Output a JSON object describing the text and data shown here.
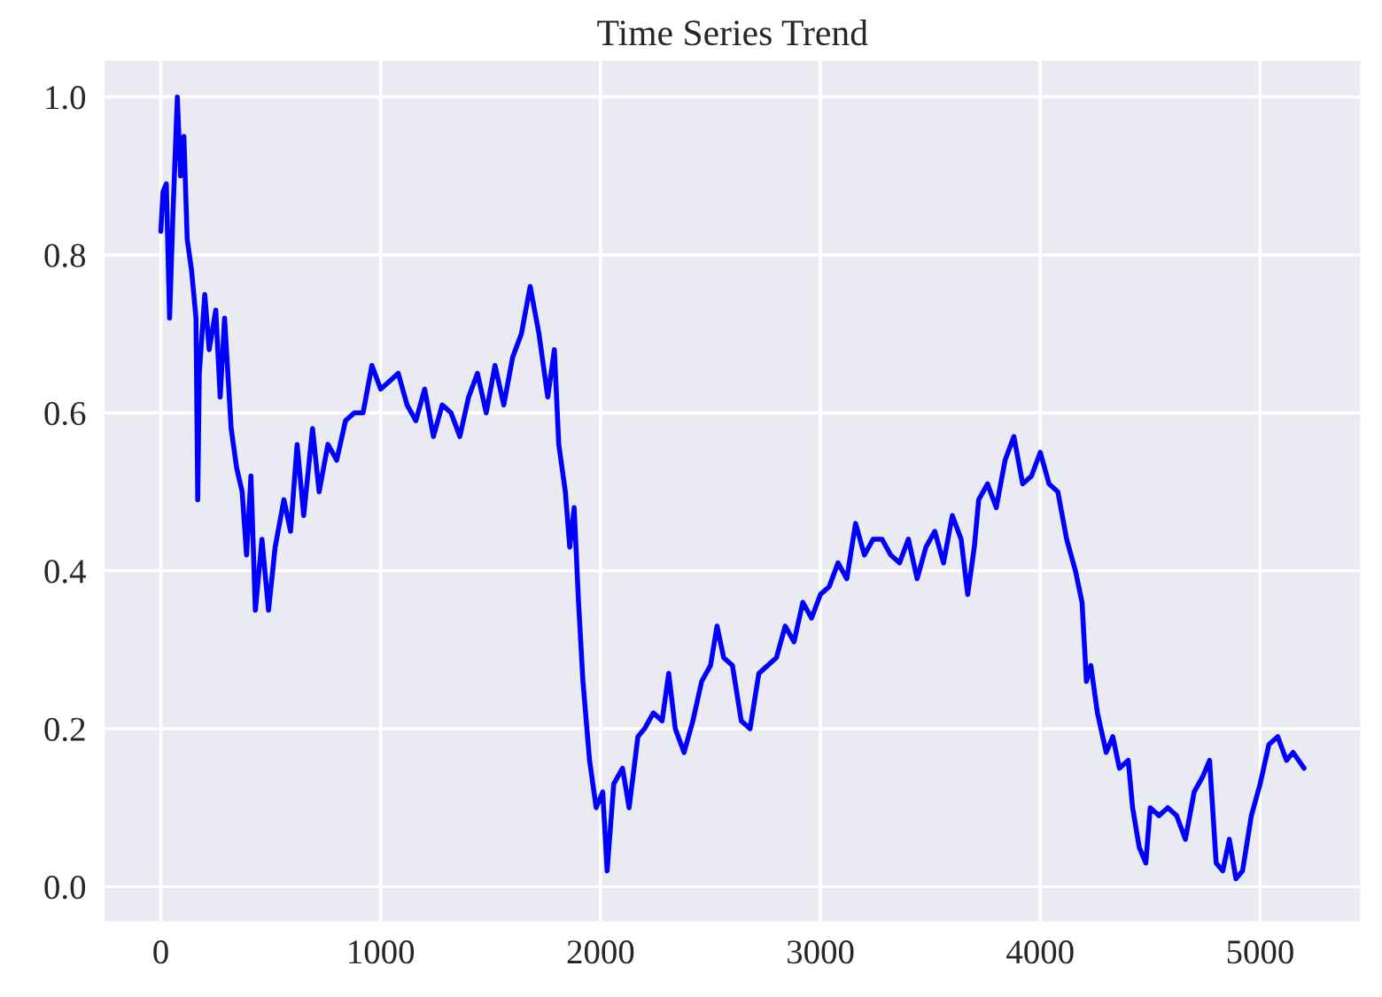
{
  "chart_data": {
    "type": "line",
    "title": "Time Series Trend",
    "x": [
      0,
      10,
      25,
      40,
      55,
      75,
      90,
      105,
      120,
      140,
      160,
      168,
      175,
      200,
      220,
      250,
      270,
      290,
      320,
      345,
      370,
      390,
      410,
      430,
      460,
      490,
      520,
      560,
      590,
      620,
      650,
      690,
      720,
      760,
      800,
      840,
      880,
      920,
      960,
      1000,
      1040,
      1080,
      1120,
      1160,
      1200,
      1240,
      1280,
      1320,
      1360,
      1400,
      1440,
      1480,
      1520,
      1560,
      1600,
      1640,
      1680,
      1720,
      1760,
      1790,
      1810,
      1840,
      1860,
      1880,
      1900,
      1920,
      1950,
      1980,
      2010,
      2030,
      2060,
      2100,
      2130,
      2170,
      2200,
      2240,
      2280,
      2310,
      2340,
      2380,
      2420,
      2460,
      2500,
      2530,
      2560,
      2600,
      2640,
      2680,
      2720,
      2760,
      2800,
      2840,
      2880,
      2920,
      2960,
      3000,
      3040,
      3080,
      3120,
      3160,
      3200,
      3240,
      3280,
      3320,
      3360,
      3400,
      3440,
      3480,
      3520,
      3560,
      3600,
      3640,
      3670,
      3700,
      3720,
      3760,
      3800,
      3840,
      3880,
      3920,
      3960,
      4000,
      4040,
      4080,
      4120,
      4160,
      4190,
      4210,
      4230,
      4260,
      4300,
      4330,
      4360,
      4400,
      4420,
      4450,
      4480,
      4500,
      4540,
      4580,
      4620,
      4660,
      4700,
      4740,
      4770,
      4800,
      4830,
      4860,
      4890,
      4920,
      4960,
      5000,
      5040,
      5080,
      5120,
      5150,
      5200
    ],
    "series": [
      {
        "color": "#0000ff",
        "values": [
          0.83,
          0.88,
          0.89,
          0.72,
          0.85,
          1.0,
          0.9,
          0.95,
          0.82,
          0.78,
          0.72,
          0.49,
          0.65,
          0.75,
          0.68,
          0.73,
          0.62,
          0.72,
          0.58,
          0.53,
          0.5,
          0.42,
          0.52,
          0.35,
          0.44,
          0.35,
          0.43,
          0.49,
          0.45,
          0.56,
          0.47,
          0.58,
          0.5,
          0.56,
          0.54,
          0.59,
          0.6,
          0.6,
          0.66,
          0.63,
          0.64,
          0.65,
          0.61,
          0.59,
          0.63,
          0.57,
          0.61,
          0.6,
          0.57,
          0.62,
          0.65,
          0.6,
          0.66,
          0.61,
          0.67,
          0.7,
          0.76,
          0.7,
          0.62,
          0.68,
          0.56,
          0.5,
          0.43,
          0.48,
          0.36,
          0.26,
          0.16,
          0.1,
          0.12,
          0.02,
          0.13,
          0.15,
          0.1,
          0.19,
          0.2,
          0.22,
          0.21,
          0.27,
          0.2,
          0.17,
          0.21,
          0.26,
          0.28,
          0.33,
          0.29,
          0.28,
          0.21,
          0.2,
          0.27,
          0.28,
          0.29,
          0.33,
          0.31,
          0.36,
          0.34,
          0.37,
          0.38,
          0.41,
          0.39,
          0.46,
          0.42,
          0.44,
          0.44,
          0.42,
          0.41,
          0.44,
          0.39,
          0.43,
          0.45,
          0.41,
          0.47,
          0.44,
          0.37,
          0.43,
          0.49,
          0.51,
          0.48,
          0.54,
          0.57,
          0.51,
          0.52,
          0.55,
          0.51,
          0.5,
          0.44,
          0.4,
          0.36,
          0.26,
          0.28,
          0.22,
          0.17,
          0.19,
          0.15,
          0.16,
          0.1,
          0.05,
          0.03,
          0.1,
          0.09,
          0.1,
          0.09,
          0.06,
          0.12,
          0.14,
          0.16,
          0.03,
          0.02,
          0.06,
          0.01,
          0.02,
          0.09,
          0.13,
          0.18,
          0.19,
          0.16,
          0.17,
          0.15
        ]
      }
    ],
    "xlim": [
      -260,
      5460
    ],
    "ylim": [
      -0.045,
      1.047
    ],
    "xticks": [
      0,
      1000,
      2000,
      3000,
      4000,
      5000
    ],
    "yticks": [
      {
        "value": 0,
        "label": "0.0"
      },
      {
        "value": 0.2,
        "label": "0.2"
      },
      {
        "value": 0.4,
        "label": "0.4"
      },
      {
        "value": 0.6,
        "label": "0.6"
      },
      {
        "value": 0.8,
        "label": "0.8"
      },
      {
        "value": 1.0,
        "label": "1.0"
      }
    ],
    "grid": true,
    "line_style": "solid"
  }
}
